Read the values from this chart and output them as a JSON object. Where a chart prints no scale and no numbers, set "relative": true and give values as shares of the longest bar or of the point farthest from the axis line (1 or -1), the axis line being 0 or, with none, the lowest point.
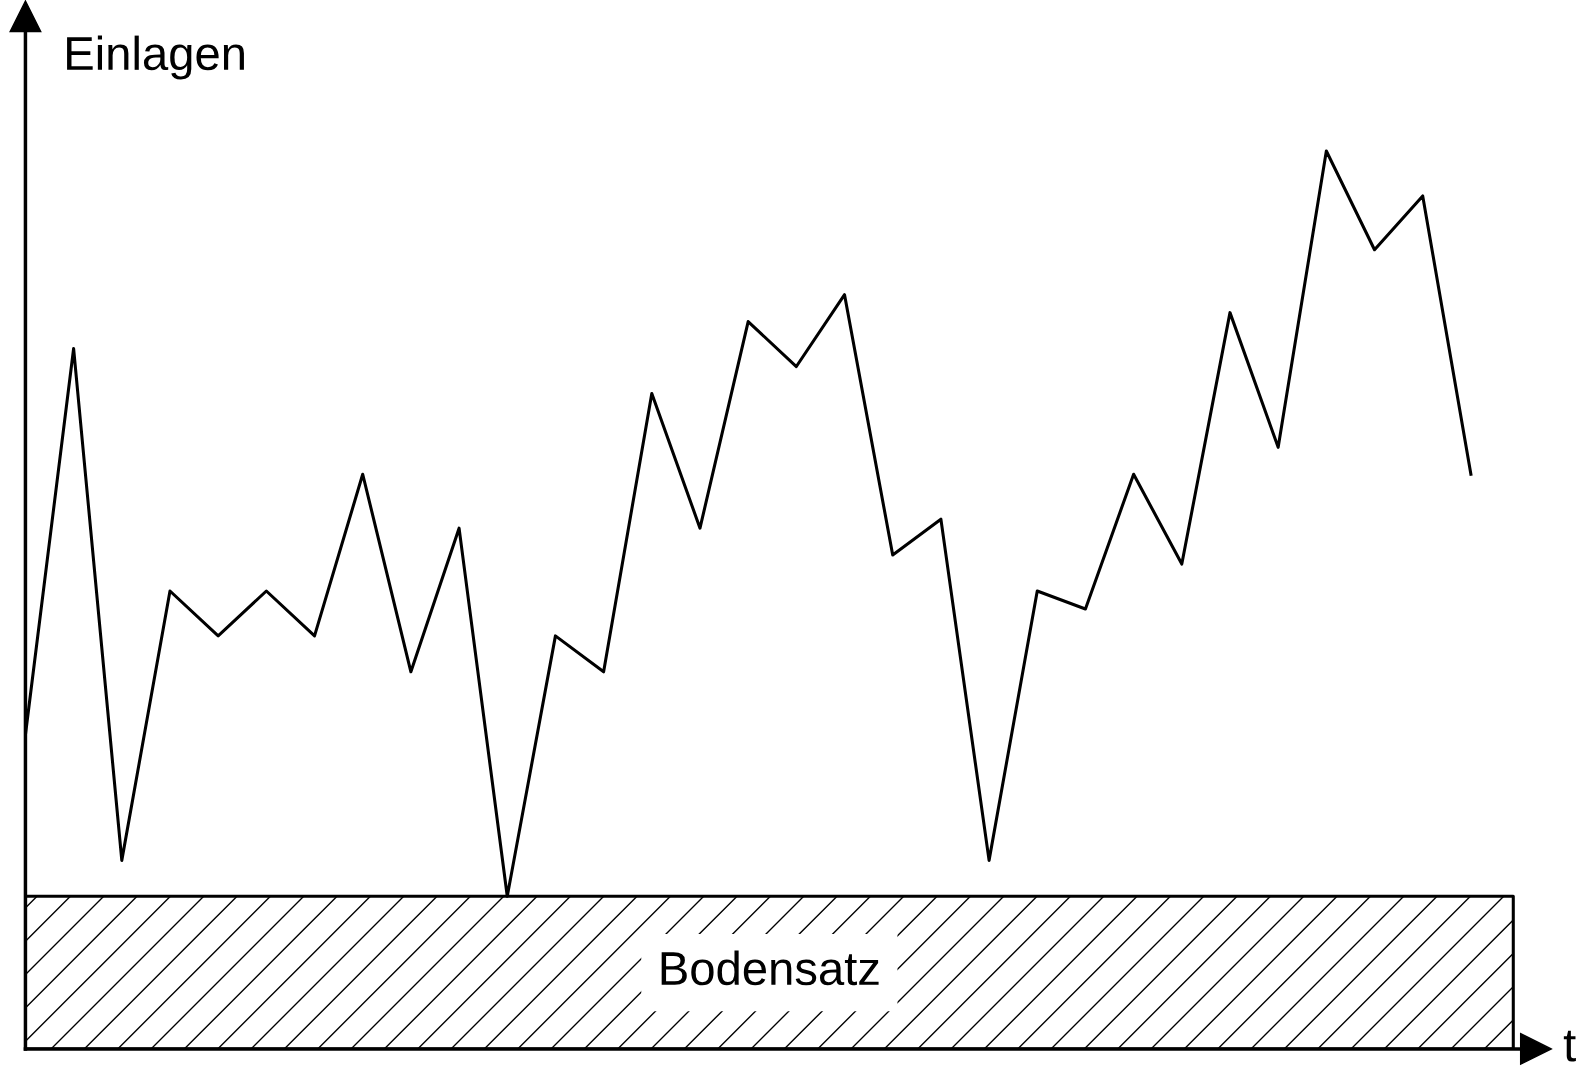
{
  "chart_data": {
    "type": "line",
    "relative": true,
    "ylabel": "Einlagen",
    "xlabel": "t",
    "color": "#000000",
    "marker": "none",
    "line_style": "solid",
    "legend": false,
    "tick_labels": false,
    "categories": [
      null,
      null,
      null,
      null,
      null,
      null,
      null,
      null,
      null,
      null,
      null,
      null,
      null,
      null,
      null,
      null,
      null,
      null,
      null,
      null,
      null,
      null,
      null,
      null,
      null,
      null,
      null,
      null,
      null,
      null,
      null
    ],
    "values": [
      0.35,
      0.78,
      0.21,
      0.51,
      0.46,
      0.51,
      0.46,
      0.64,
      0.42,
      0.58,
      0.17,
      0.46,
      0.42,
      0.73,
      0.58,
      0.81,
      0.76,
      0.84,
      0.55,
      0.59,
      0.21,
      0.51,
      0.49,
      0.64,
      0.54,
      0.82,
      0.67,
      1.0,
      0.89,
      0.95,
      0.64
    ],
    "bands": [
      {
        "axis": "y",
        "from": 0,
        "to": 0.17,
        "label": "Bodensatz",
        "color": "#000000"
      }
    ]
  }
}
